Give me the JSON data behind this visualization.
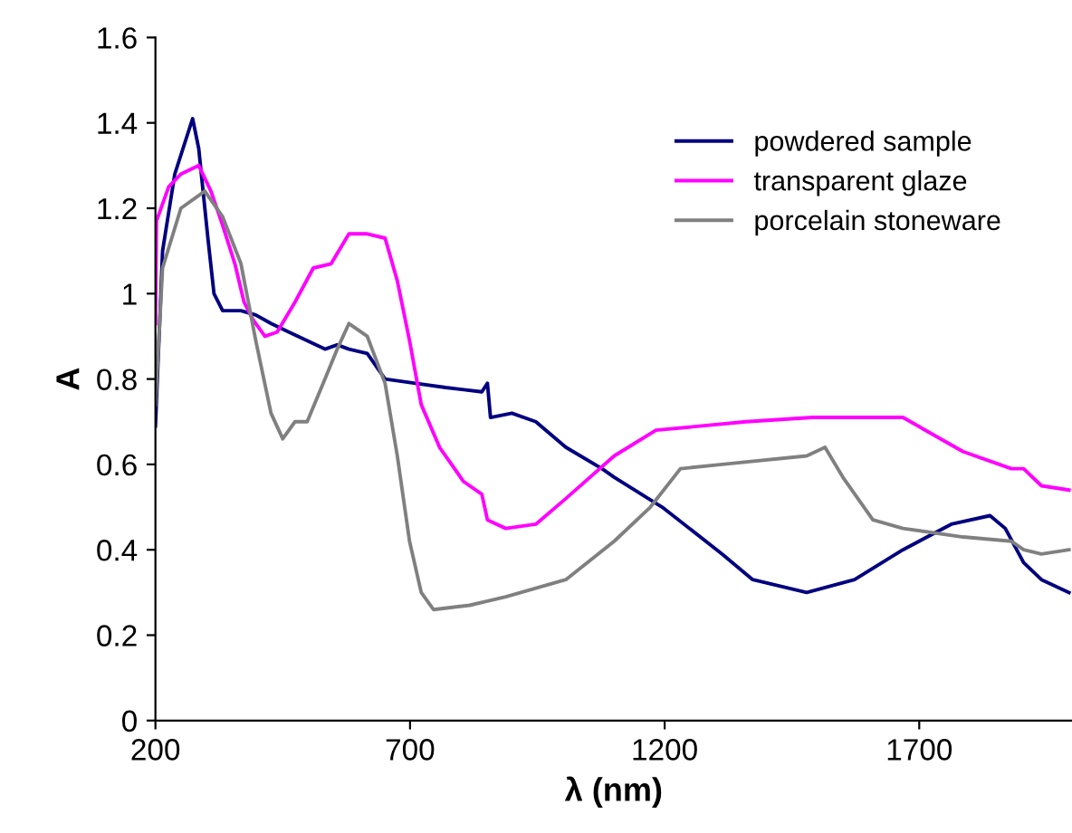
{
  "chart_data": {
    "type": "line",
    "xlabel": "λ (nm)",
    "ylabel": "A",
    "xlim": [
      200,
      2000
    ],
    "xticks": [
      200,
      700,
      1200,
      1700
    ],
    "ylim": [
      0,
      1.6
    ],
    "yticks": [
      0,
      0.2,
      0.4,
      0.6,
      0.8,
      1,
      1.2,
      1.4,
      1.6
    ],
    "grid": false,
    "legend": "top right",
    "marker": "none",
    "line_style": "solid",
    "series": [
      {
        "name": "powdered sample",
        "color": "#000080",
        "x": [
          200,
          214,
          238,
          273,
          285,
          303,
          315,
          332,
          368,
          397,
          427,
          462,
          498,
          533,
          557,
          580,
          616,
          651,
          711,
          770,
          841,
          852,
          858,
          900,
          947,
          1006,
          1077,
          1101,
          1195,
          1313,
          1373,
          1479,
          1573,
          1668,
          1763,
          1839,
          1869,
          1905,
          1940,
          1994
        ],
        "values": [
          0.69,
          1.1,
          1.28,
          1.41,
          1.34,
          1.13,
          1.0,
          0.96,
          0.96,
          0.95,
          0.93,
          0.91,
          0.89,
          0.87,
          0.88,
          0.87,
          0.86,
          0.8,
          0.79,
          0.78,
          0.77,
          0.79,
          0.71,
          0.72,
          0.7,
          0.64,
          0.59,
          0.57,
          0.5,
          0.39,
          0.33,
          0.3,
          0.33,
          0.4,
          0.46,
          0.48,
          0.45,
          0.37,
          0.33,
          0.3
        ]
      },
      {
        "name": "transparent glaze",
        "color": "#ff00ff",
        "x": [
          200,
          202,
          226,
          250,
          285,
          309,
          332,
          356,
          374,
          391,
          415,
          439,
          474,
          510,
          545,
          580,
          616,
          651,
          675,
          699,
          722,
          758,
          805,
          841,
          852,
          888,
          947,
          1006,
          1101,
          1183,
          1360,
          1491,
          1668,
          1786,
          1881,
          1905,
          1940,
          1994
        ],
        "values": [
          0.93,
          1.17,
          1.25,
          1.28,
          1.3,
          1.24,
          1.16,
          1.07,
          0.98,
          0.94,
          0.9,
          0.91,
          0.98,
          1.06,
          1.07,
          1.14,
          1.14,
          1.13,
          1.03,
          0.89,
          0.74,
          0.64,
          0.56,
          0.53,
          0.47,
          0.45,
          0.46,
          0.52,
          0.62,
          0.68,
          0.7,
          0.71,
          0.71,
          0.63,
          0.59,
          0.59,
          0.55,
          0.54
        ]
      },
      {
        "name": "porcelain stoneware",
        "color": "#808080",
        "x": [
          200,
          214,
          250,
          297,
          332,
          368,
          397,
          427,
          450,
          474,
          498,
          533,
          557,
          580,
          616,
          651,
          675,
          699,
          722,
          746,
          817,
          852,
          888,
          1006,
          1101,
          1172,
          1231,
          1313,
          1479,
          1515,
          1550,
          1609,
          1668,
          1786,
          1881,
          1905,
          1940,
          1994
        ],
        "values": [
          0.74,
          1.06,
          1.2,
          1.24,
          1.18,
          1.07,
          0.89,
          0.72,
          0.66,
          0.7,
          0.7,
          0.8,
          0.87,
          0.93,
          0.9,
          0.79,
          0.62,
          0.42,
          0.3,
          0.26,
          0.27,
          0.28,
          0.29,
          0.33,
          0.42,
          0.5,
          0.59,
          0.6,
          0.62,
          0.64,
          0.57,
          0.47,
          0.45,
          0.43,
          0.42,
          0.4,
          0.39,
          0.4
        ]
      }
    ]
  }
}
